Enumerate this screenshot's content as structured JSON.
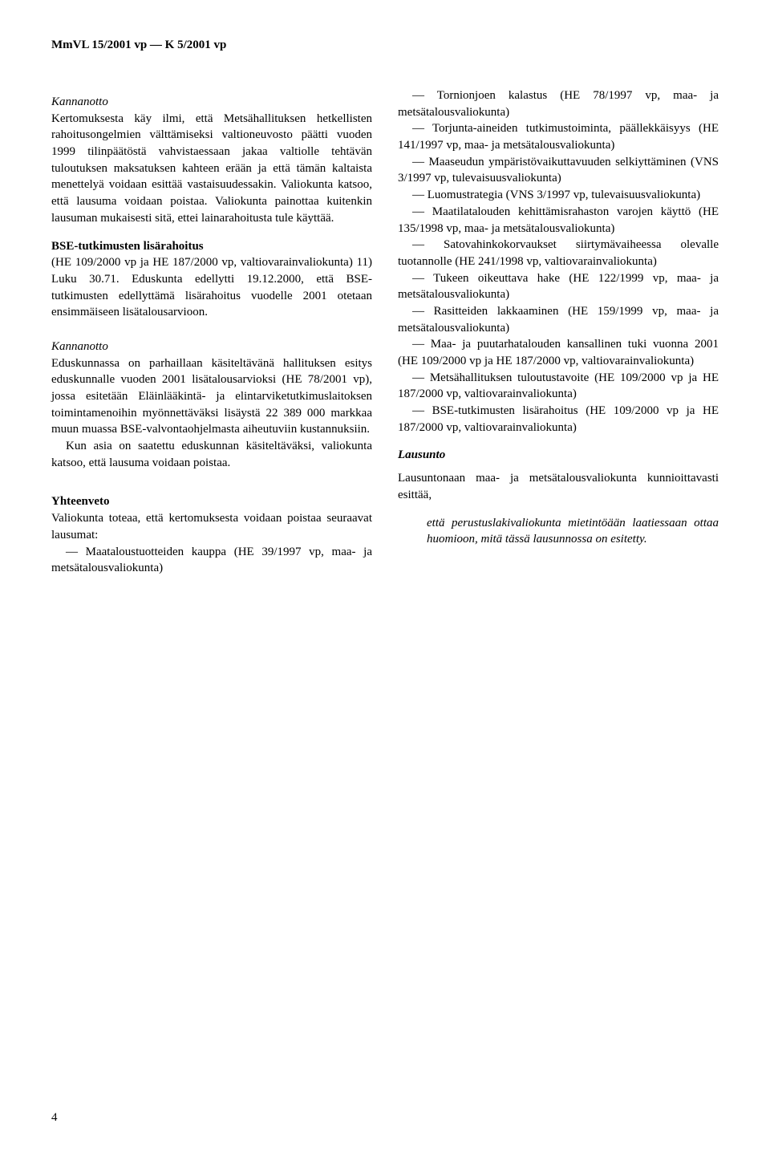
{
  "header": "MmVL 15/2001 vp — K 5/2001 vp",
  "left": {
    "h1": "Kannanotto",
    "p1": "Kertomuksesta käy ilmi, että Metsähallituksen hetkellisten rahoitusongelmien välttämiseksi valtioneuvosto päätti vuoden 1999 tilinpäätöstä vahvistaessaan jakaa valtiolle tehtävän tuloutuksen maksatuksen kahteen erään ja että tämän kaltaista menettelyä voidaan esittää vastaisuudessakin. Valiokunta katsoo, että lausuma voidaan poistaa. Valiokunta painottaa kuitenkin lausuman mukaisesti sitä, ettei lainarahoitusta tule käyttää.",
    "h2": "BSE-tutkimusten lisärahoitus",
    "p2": "(HE 109/2000 vp ja HE 187/2000 vp, valtiovarainvaliokunta) 11) Luku 30.71. Eduskunta edellytti 19.12.2000, että BSE-tutkimusten edellyttämä lisärahoitus vuodelle 2001 otetaan ensimmäiseen lisätalousarvioon.",
    "h3": "Kannanotto",
    "p3": "Eduskunnassa on parhaillaan käsiteltävänä hallituksen esitys eduskunnalle vuoden 2001 lisätalousarvioksi (HE 78/2001 vp), jossa esitetään Eläinlääkintä- ja elintarviketutkimuslaitoksen toimintamenoihin myönnettäväksi lisäystä 22 389 000 markkaa muun muassa BSE-valvontaohjelmasta aiheutuviin kustannuksiin.",
    "p4": "Kun asia on saatettu eduskunnan käsiteltäväksi, valiokunta katsoo, että lausuma voidaan poistaa.",
    "h4": "Yhteenveto",
    "p5": "Valiokunta toteaa, että kertomuksesta voidaan poistaa seuraavat lausumat:",
    "li1": "— Maataloustuotteiden kauppa (HE 39/1997 vp, maa- ja metsätalousvaliokunta)"
  },
  "right": {
    "li1": "— Tornionjoen kalastus (HE 78/1997 vp, maa- ja metsätalousvaliokunta)",
    "li2": "— Torjunta-aineiden tutkimustoiminta, päällekkäisyys (HE 141/1997 vp, maa- ja metsätalousvaliokunta)",
    "li3": "— Maaseudun ympäristövaikuttavuuden selkiyttäminen (VNS 3/1997 vp, tulevaisuusvaliokunta)",
    "li4": "— Luomustrategia (VNS 3/1997 vp, tulevaisuusvaliokunta)",
    "li5": "— Maatilatalouden kehittämisrahaston varojen käyttö (HE 135/1998 vp, maa- ja metsätalousvaliokunta)",
    "li6": "— Satovahinkokorvaukset siirtymävaiheessa olevalle tuotannolle (HE 241/1998 vp, valtiovarainvaliokunta)",
    "li7": "— Tukeen oikeuttava hake (HE 122/1999 vp, maa- ja metsätalousvaliokunta)",
    "li8": "— Rasitteiden lakkaaminen (HE 159/1999 vp, maa- ja metsätalousvaliokunta)",
    "li9": "— Maa- ja puutarhatalouden kansallinen tuki vuonna 2001 (HE 109/2000 vp ja HE 187/2000 vp, valtiovarainvaliokunta)",
    "li10": "— Metsähallituksen tuloutustavoite (HE 109/2000 vp ja HE 187/2000 vp, valtiovarainvaliokunta)",
    "li11": "— BSE-tutkimusten lisärahoitus (HE 109/2000 vp ja HE 187/2000 vp, valtiovarainvaliokunta)",
    "h1": "Lausunto",
    "p1": "Lausuntonaan maa- ja metsätalousvaliokunta kunnioittavasti esittää,",
    "p2": "että perustuslakivaliokunta mietintöään laatiessaan ottaa huomioon, mitä tässä lausunnossa on esitetty."
  },
  "pagenum": "4"
}
